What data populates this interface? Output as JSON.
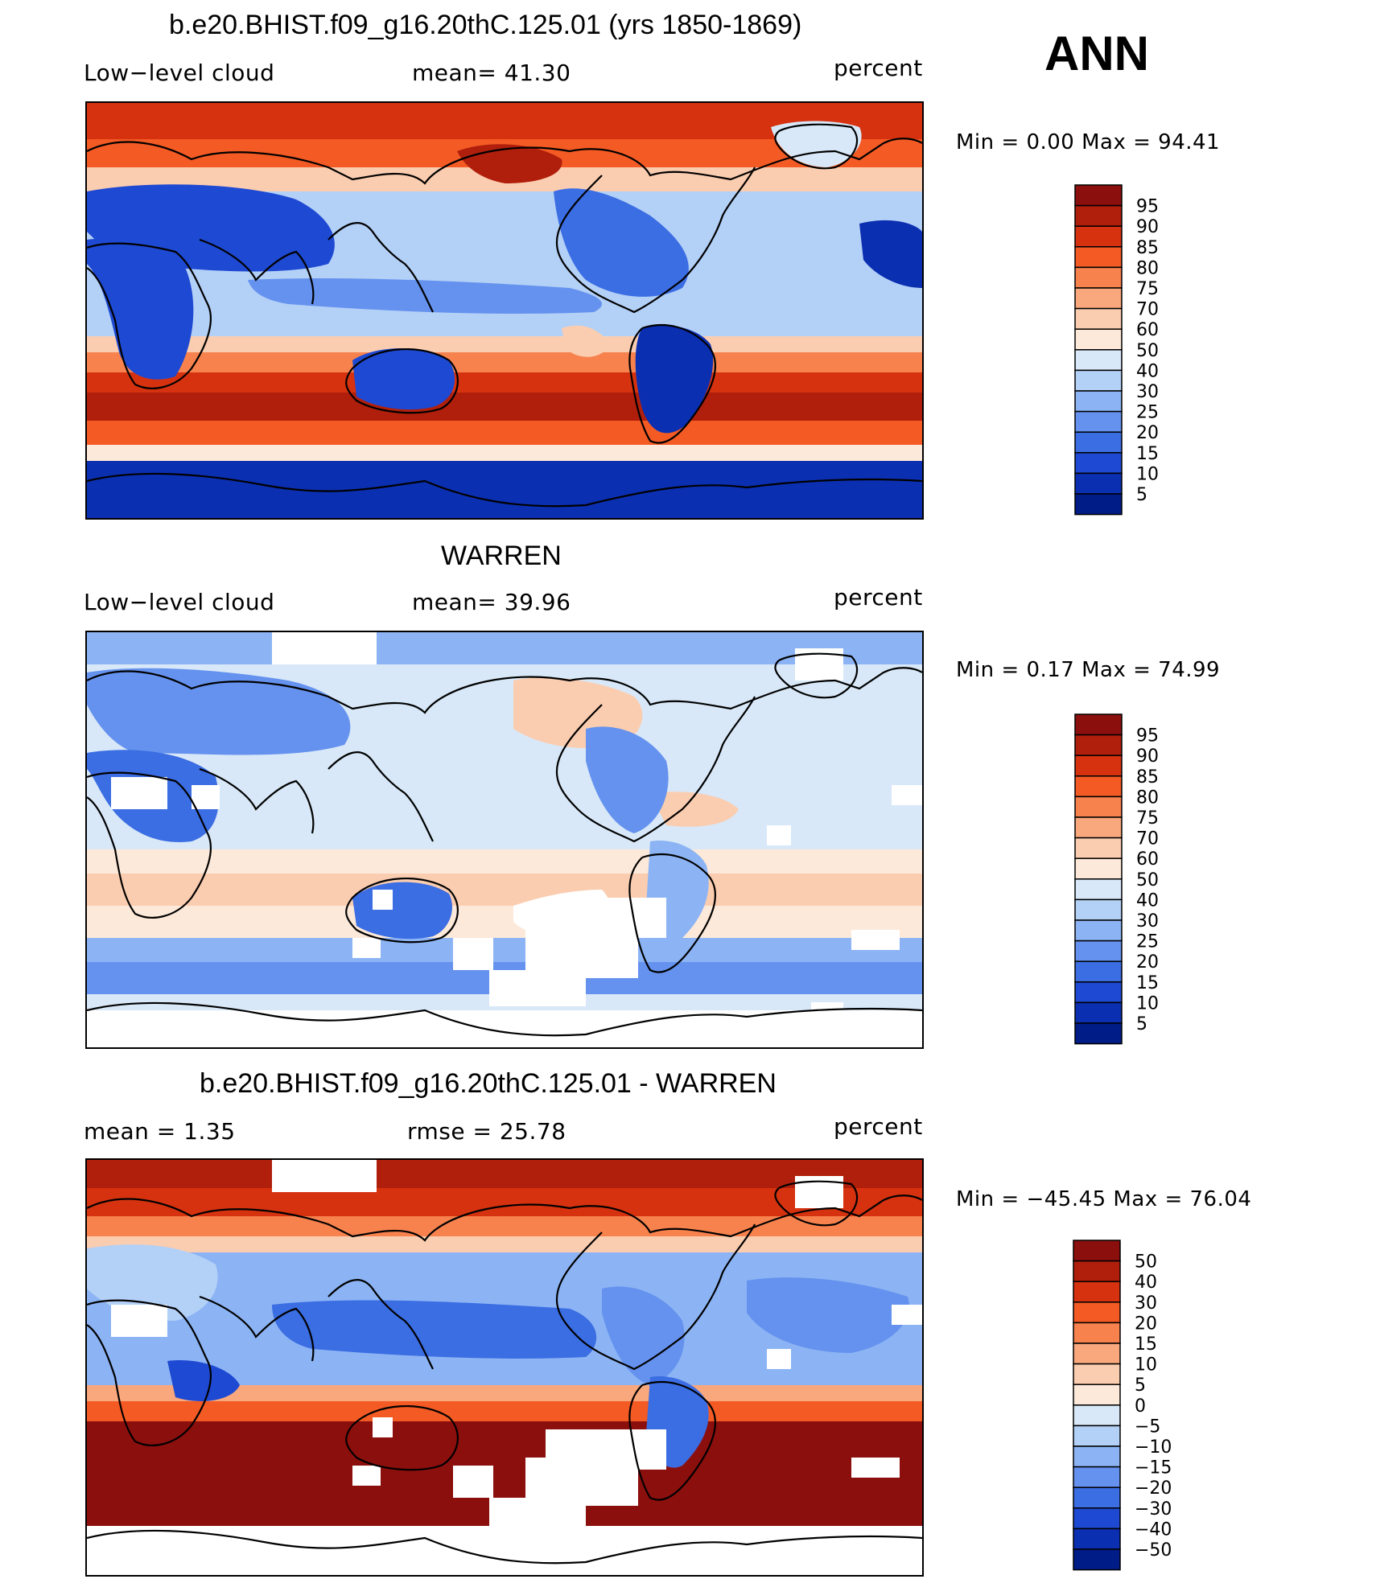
{
  "season": "ANN",
  "chart_data": [
    {
      "type": "heatmap",
      "title": "b.e20.BHIST.f09_g16.20thC.125.01 (yrs 1850-1869)",
      "left_label": "Low−level cloud",
      "center_label": "mean=   41.30",
      "units": "percent",
      "min_max": "Min  =     0.00  Max  =    94.41",
      "mean": 41.3,
      "min": 0.0,
      "max": 94.41,
      "colorbar_levels": [
        "95",
        "90",
        "85",
        "80",
        "75",
        "70",
        "60",
        "50",
        "40",
        "30",
        "25",
        "20",
        "15",
        "10",
        "5"
      ],
      "colors": [
        "#8b0f0d",
        "#b01f0c",
        "#d63210",
        "#f45a24",
        "#f7824e",
        "#f9a77c",
        "#fbcdb0",
        "#fde9d9",
        "#d8e8f8",
        "#b3d0f7",
        "#8cb4f4",
        "#6592ee",
        "#3b6de3",
        "#1e49d2",
        "#0b2fb1",
        "#001c86"
      ]
    },
    {
      "type": "heatmap",
      "title": "WARREN",
      "left_label": "Low−level cloud",
      "center_label": "mean=   39.96",
      "units": "percent",
      "min_max": "Min  =     0.17  Max  =    74.99",
      "mean": 39.96,
      "min": 0.17,
      "max": 74.99,
      "colorbar_levels": [
        "95",
        "90",
        "85",
        "80",
        "75",
        "70",
        "60",
        "50",
        "40",
        "30",
        "25",
        "20",
        "15",
        "10",
        "5"
      ],
      "colors": [
        "#8b0f0d",
        "#b01f0c",
        "#d63210",
        "#f45a24",
        "#f7824e",
        "#f9a77c",
        "#fbcdb0",
        "#fde9d9",
        "#d8e8f8",
        "#b3d0f7",
        "#8cb4f4",
        "#6592ee",
        "#3b6de3",
        "#1e49d2",
        "#0b2fb1",
        "#001c86"
      ]
    },
    {
      "type": "heatmap",
      "title": "b.e20.BHIST.f09_g16.20thC.125.01 - WARREN",
      "left_label": "mean  =      1.35",
      "center_label": "rmse  =    25.78",
      "units": "percent",
      "min_max": "Min  =  −45.45  Max  =    76.04",
      "mean": 1.35,
      "rmse": 25.78,
      "min": -45.45,
      "max": 76.04,
      "colorbar_levels": [
        "50",
        "40",
        "30",
        "20",
        "15",
        "10",
        "5",
        "0",
        "−5",
        "−10",
        "−15",
        "−20",
        "−30",
        "−40",
        "−50"
      ],
      "colors": [
        "#8b0f0d",
        "#b01f0c",
        "#d63210",
        "#f45a24",
        "#f7824e",
        "#f9a77c",
        "#fbcdb0",
        "#fde9d9",
        "#d8e8f8",
        "#b3d0f7",
        "#8cb4f4",
        "#6592ee",
        "#3b6de3",
        "#1e49d2",
        "#0b2fb1",
        "#001c86"
      ]
    }
  ]
}
